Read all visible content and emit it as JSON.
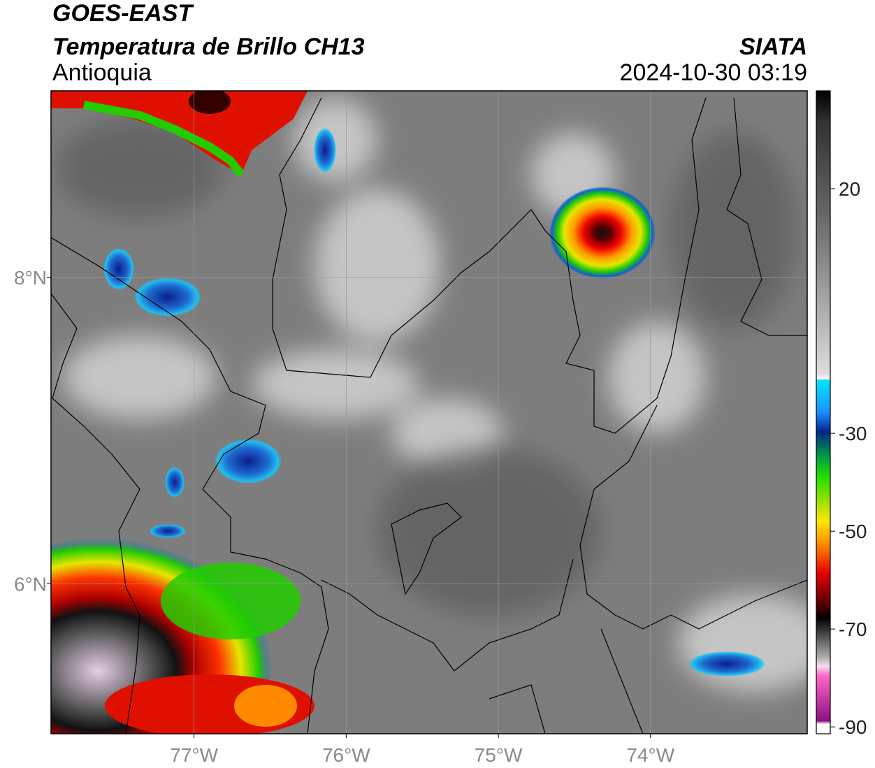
{
  "header": {
    "satellite": "GOES-EAST",
    "product": "Temperatura de Brillo CH13",
    "region": "Antioquia",
    "agency": "SIATA",
    "datetime": "2024-10-30 03:19"
  },
  "map": {
    "xlim": [
      -77.94,
      -72.97
    ],
    "ylim": [
      5.02,
      9.22
    ],
    "xticks": [
      {
        "value": -77,
        "label": "77°W"
      },
      {
        "value": -76,
        "label": "76°W"
      },
      {
        "value": -75,
        "label": "75°W"
      },
      {
        "value": -74,
        "label": "74°W"
      }
    ],
    "yticks": [
      {
        "value": 8,
        "label": "8°N"
      },
      {
        "value": 6,
        "label": "6°N"
      }
    ],
    "grid": true
  },
  "colorbar": {
    "lim": [
      -91.4,
      40
    ],
    "ticks": [
      20,
      -30,
      -50,
      -70,
      -90
    ]
  }
}
